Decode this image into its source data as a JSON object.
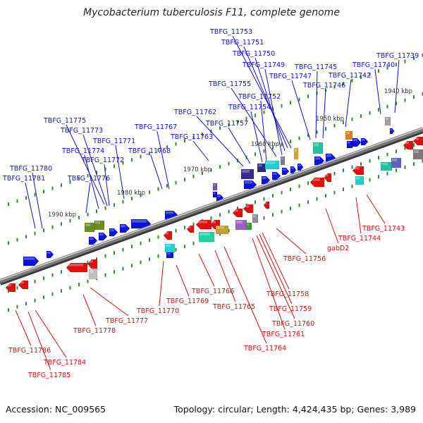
{
  "title": "Mycobacterium tuberculosis F11, complete genome",
  "footer": {
    "accession": "Accession: NC_009565",
    "topology": "Topology: circular; Length: 4,424,435 bp; Genes: 3,989"
  },
  "colors": {
    "forward_strand": "#0a14d6",
    "reverse_strand": "#e01010",
    "backbone": "#7a7a7a",
    "tick": "#2e8b2e"
  },
  "ruler_labels": [
    "1940 kbp",
    "1950 kbp",
    "1960 kbp",
    "1970 kbp",
    "1980 kbp",
    "1990 kbp"
  ],
  "top_genes": [
    "TBFG_11753",
    "TBFG_11751",
    "TBFG_11750",
    "TBFG_11749",
    "TBFG_11747",
    "TBFG_11745",
    "TBFG_11746",
    "TBFG_11739",
    "TBFG_11740",
    "TBFG_11742",
    "TBFG_11755",
    "TBFG_11752",
    "TBFG_11754",
    "TBFG_11762",
    "TBFG_11757",
    "TBFG_11767",
    "TBFG_11763",
    "TBFG_11775",
    "TBFG_11773",
    "TBFG_11771",
    "TBFG_11774",
    "TBFG_11772",
    "TBFG_11768",
    "TBFG_11780",
    "TBFG_11781",
    "TBFG_11776"
  ],
  "bottom_genes": [
    "TBFG_11743",
    "TBFG_11744",
    "gabD2",
    "TBFG_11756",
    "TBFG_11758",
    "TBFG_11759",
    "TBFG_11760",
    "TBFG_11761",
    "TBFG_11764",
    "TBFG_11766",
    "TBFG_11765",
    "TBFG_11769",
    "TBFG_11770",
    "TBFG_11777",
    "TBFG_11778",
    "TBFG_11786",
    "TBFG_11784",
    "TBFG_11785"
  ]
}
